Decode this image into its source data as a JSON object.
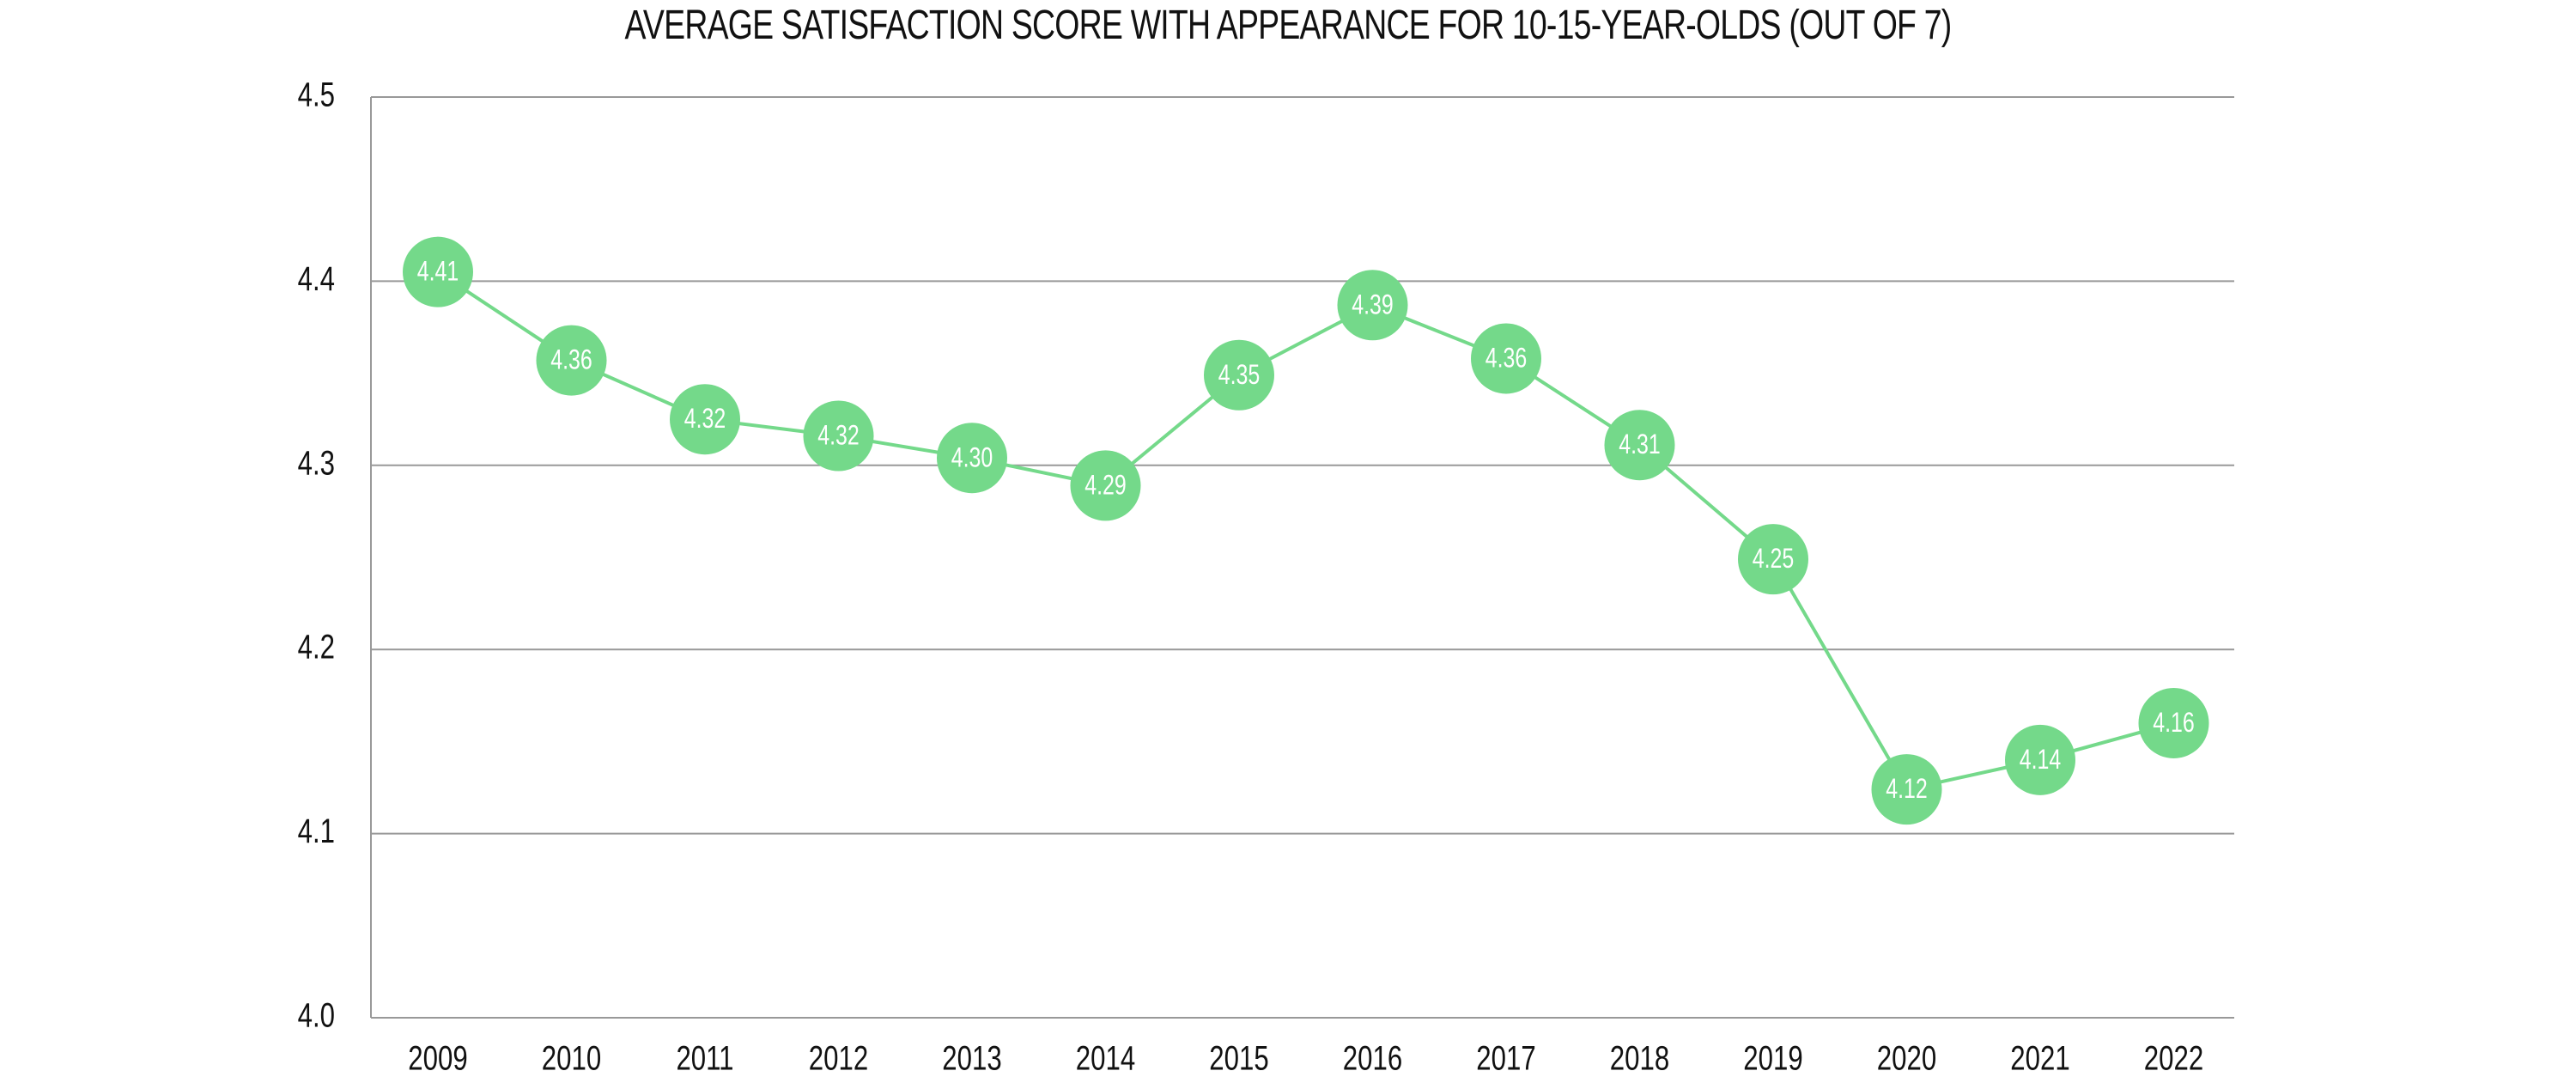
{
  "chart_data": {
    "type": "line",
    "title": "AVERAGE SATISFACTION SCORE WITH APPEARANCE FOR 10-15-YEAR-OLDS (OUT OF 7)",
    "xlabel": "",
    "ylabel": "",
    "categories": [
      "2009",
      "2010",
      "2011",
      "2012",
      "2013",
      "2014",
      "2015",
      "2016",
      "2017",
      "2018",
      "2019",
      "2020",
      "2021",
      "2022"
    ],
    "series": [
      {
        "name": "Average satisfaction score",
        "values": [
          4.405,
          4.357,
          4.325,
          4.316,
          4.304,
          4.289,
          4.349,
          4.387,
          4.358,
          4.311,
          4.249,
          4.124,
          4.14,
          4.16
        ],
        "labels": [
          "4.41",
          "4.36",
          "4.32",
          "4.32",
          "4.30",
          "4.29",
          "4.35",
          "4.39",
          "4.36",
          "4.31",
          "4.25",
          "4.12",
          "4.14",
          "4.16"
        ],
        "color": "#74d98a"
      }
    ],
    "ylim": [
      4.0,
      4.5
    ],
    "yticks": [
      "4.0",
      "4.1",
      "4.2",
      "4.3",
      "4.4",
      "4.5"
    ],
    "ytick_values": [
      4.0,
      4.1,
      4.2,
      4.3,
      4.4,
      4.5
    ],
    "grid": true,
    "legend": "none"
  }
}
